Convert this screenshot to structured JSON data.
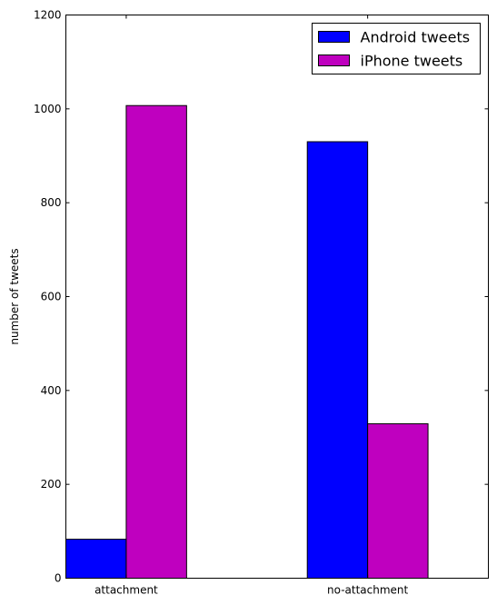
{
  "chart_data": {
    "type": "bar",
    "categories": [
      "attachment",
      "no-attachment"
    ],
    "series": [
      {
        "name": "Android tweets",
        "values": [
          83,
          930
        ],
        "color": "#0000ff"
      },
      {
        "name": "iPhone tweets",
        "values": [
          1007,
          329
        ],
        "color": "#bf00bf"
      }
    ],
    "xlabel": "",
    "ylabel": "number of tweets",
    "ylim": [
      0,
      1200
    ],
    "yticks": [
      0,
      200,
      400,
      600,
      800,
      1000,
      1200
    ],
    "legend_position": "top-right",
    "grid": false
  }
}
